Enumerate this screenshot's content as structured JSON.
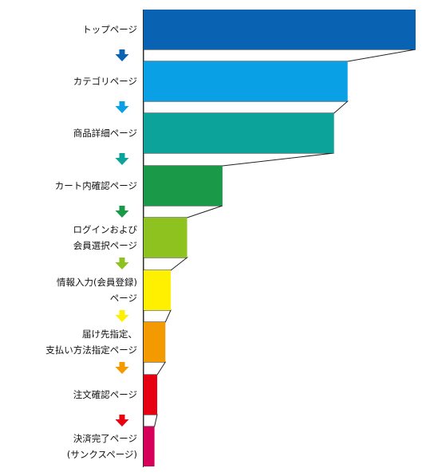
{
  "chart_data": {
    "type": "bar",
    "orientation": "horizontal",
    "style": "funnel",
    "title": "",
    "xlabel": "",
    "ylabel": "",
    "grid": false,
    "legend": "none",
    "xlim": [
      0,
      100
    ],
    "categories": [
      [
        "トップページ"
      ],
      [
        "カテゴリページ"
      ],
      [
        "商品詳細ページ"
      ],
      [
        "カート内確認ページ"
      ],
      [
        "ログインおよび",
        "会員選択ページ"
      ],
      [
        "情報入力(会員登録)",
        "ページ"
      ],
      [
        "届け先指定、",
        "支払い方法指定ページ"
      ],
      [
        "注文確認ページ"
      ],
      [
        "決済完了ページ",
        "(サンクスページ)"
      ]
    ],
    "values": [
      100,
      75,
      70,
      29,
      16,
      10,
      8,
      5,
      4
    ],
    "colors": [
      "#0a62b3",
      "#0aa0e6",
      "#0ba39a",
      "#1a9a48",
      "#8dc21f",
      "#fff000",
      "#f39a00",
      "#e60012",
      "#d6005b"
    ],
    "arrow_colors": [
      "#0a62b3",
      "#0aa0e6",
      "#0ba39a",
      "#1a9a48",
      "#8dc21f",
      "#fff000",
      "#f39a00",
      "#e60012"
    ]
  }
}
